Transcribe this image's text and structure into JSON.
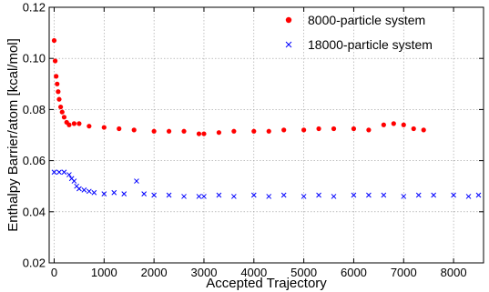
{
  "chart_data": {
    "type": "scatter",
    "xlabel": "Accepted Trajectory",
    "ylabel": "Enthalpy Barrier/atom  [kcal/mol]",
    "xlim": [
      -100,
      8600
    ],
    "ylim": [
      0.02,
      0.12
    ],
    "x_ticks": [
      "0",
      "1000",
      "2000",
      "3000",
      "4000",
      "5000",
      "6000",
      "7000",
      "8000"
    ],
    "y_ticks": [
      "0.02",
      "0.04",
      "0.06",
      "0.08",
      "0.10",
      "0.12"
    ],
    "grid": true,
    "legend_position": "top-right",
    "series": [
      {
        "name": "8000-particle system",
        "marker": "circle",
        "color": "#ff0000",
        "x": [
          0,
          20,
          40,
          60,
          80,
          100,
          130,
          160,
          200,
          250,
          300,
          400,
          500,
          700,
          1000,
          1300,
          1600,
          2000,
          2300,
          2600,
          2900,
          3000,
          3300,
          3600,
          4000,
          4300,
          4600,
          5000,
          5300,
          5600,
          6000,
          6300,
          6600,
          6800,
          7000,
          7200,
          7400
        ],
        "y": [
          0.107,
          0.099,
          0.093,
          0.09,
          0.087,
          0.084,
          0.081,
          0.079,
          0.077,
          0.075,
          0.074,
          0.0745,
          0.0745,
          0.0735,
          0.073,
          0.0725,
          0.072,
          0.0715,
          0.0715,
          0.0715,
          0.0705,
          0.0705,
          0.071,
          0.0715,
          0.0715,
          0.0715,
          0.072,
          0.072,
          0.0725,
          0.0725,
          0.0725,
          0.072,
          0.074,
          0.0745,
          0.074,
          0.0725,
          0.072
        ]
      },
      {
        "name": "18000-particle system",
        "marker": "x",
        "color": "#0000ff",
        "x": [
          0,
          100,
          200,
          300,
          350,
          400,
          450,
          500,
          600,
          700,
          800,
          1000,
          1200,
          1400,
          1650,
          1800,
          2000,
          2300,
          2600,
          2900,
          3000,
          3300,
          3600,
          4000,
          4300,
          4600,
          5000,
          5300,
          5600,
          6000,
          6300,
          6600,
          7000,
          7300,
          7600,
          8000,
          8300,
          8500
        ],
        "y": [
          0.0555,
          0.0555,
          0.0555,
          0.0545,
          0.053,
          0.052,
          0.05,
          0.049,
          0.0485,
          0.048,
          0.0475,
          0.047,
          0.0475,
          0.047,
          0.052,
          0.047,
          0.0465,
          0.0465,
          0.046,
          0.046,
          0.046,
          0.0465,
          0.046,
          0.0465,
          0.046,
          0.0465,
          0.046,
          0.0465,
          0.046,
          0.0465,
          0.0465,
          0.0465,
          0.046,
          0.0465,
          0.0465,
          0.0465,
          0.046,
          0.0465
        ]
      }
    ]
  }
}
